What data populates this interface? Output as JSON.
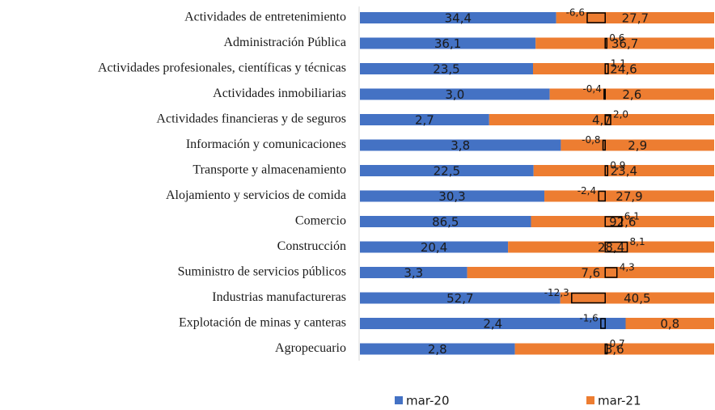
{
  "chart_data": {
    "type": "percent-stacked-bar",
    "orientation": "horizontal",
    "categories": [
      "Actividades de entretenimiento",
      "Administración Pública",
      "Actividades profesionales, científicas y técnicas",
      "Actividades inmobiliarias",
      "Actividades financieras y de seguros",
      "Información y comunicaciones",
      "Transporte y almacenamiento",
      "Alojamiento y servicios de comida",
      "Comercio",
      "Construcción",
      "Suministro de servicios públicos",
      "Industrias manufactureras",
      "Explotación de minas y canteras",
      "Agropecuario"
    ],
    "series": [
      {
        "name": "mar-20",
        "color": "#4472c4",
        "values": [
          34.4,
          36.1,
          23.5,
          3.0,
          2.7,
          3.8,
          22.5,
          30.3,
          86.5,
          20.4,
          3.3,
          52.7,
          2.4,
          2.8
        ],
        "value_labels": [
          "34,4",
          "36,1",
          "23,5",
          "3,0",
          "2,7",
          "3,8",
          "22,5",
          "30,3",
          "86,5",
          "20,4",
          "3,3",
          "52,7",
          "2,4",
          "2,8"
        ]
      },
      {
        "name": "mar-21",
        "color": "#ed7d31",
        "values": [
          27.7,
          36.7,
          24.6,
          2.6,
          4.7,
          2.9,
          23.4,
          27.9,
          92.6,
          28.4,
          7.6,
          40.5,
          0.8,
          3.6
        ],
        "value_labels": [
          "27,7",
          "36,7",
          "24,6",
          "2,6",
          "4,7",
          "2,9",
          "23,4",
          "27,9",
          "92,6",
          "28,4",
          "7,6",
          "40,5",
          "0,8",
          "3,6"
        ]
      },
      {
        "color": "#000000",
        "axis": "y2",
        "values": [
          -6.6,
          0.6,
          1.1,
          -0.4,
          2.0,
          -0.8,
          0.9,
          -2.4,
          6.1,
          8.1,
          4.3,
          -12.3,
          -1.6,
          0.7
        ],
        "value_labels": [
          "-6,6",
          "0,6",
          "1,1",
          "-0,4",
          "2,0",
          "-0,8",
          "0,9",
          "-2,4",
          "6,1",
          "8,1",
          "4,3",
          "-12,3",
          "-1,6",
          "0,7"
        ]
      }
    ],
    "y2lim": [
      -90,
      40
    ],
    "legend": "bottom"
  }
}
